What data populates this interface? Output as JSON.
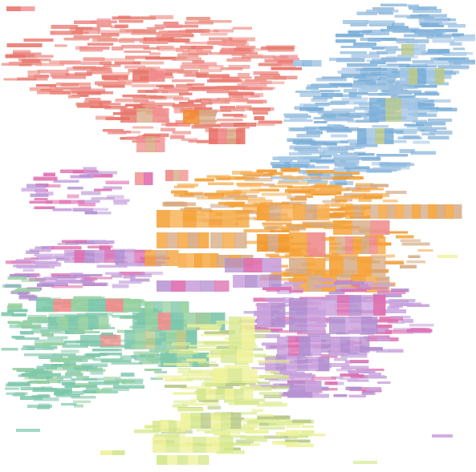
{
  "diagram": {
    "kind": "word-cloud label map",
    "background": "#ffffff",
    "cluster_palette": {
      "red": "#e8756b",
      "pink": "#f08c8c",
      "blue": "#7aaed8",
      "sky": "#a7c8e6",
      "orange": "#f5a339",
      "tan": "#d6aa83",
      "purple": "#b38fd0",
      "violet": "#c9a0dc",
      "magenta": "#df6fb0",
      "teal": "#7cc7ab",
      "green": "#97d0a0",
      "lime": "#d6e88f",
      "yellow": "#eef29a",
      "olive": "#b9c98a"
    },
    "clusters": [
      {
        "id": "red-cluster",
        "color": "red"
      },
      {
        "id": "blue-cluster",
        "color": "blue"
      },
      {
        "id": "orange-cluster",
        "color": "orange"
      },
      {
        "id": "purple-cluster",
        "color": "purple"
      },
      {
        "id": "teal-cluster",
        "color": "teal"
      },
      {
        "id": "lime-cluster",
        "color": "lime"
      }
    ]
  }
}
